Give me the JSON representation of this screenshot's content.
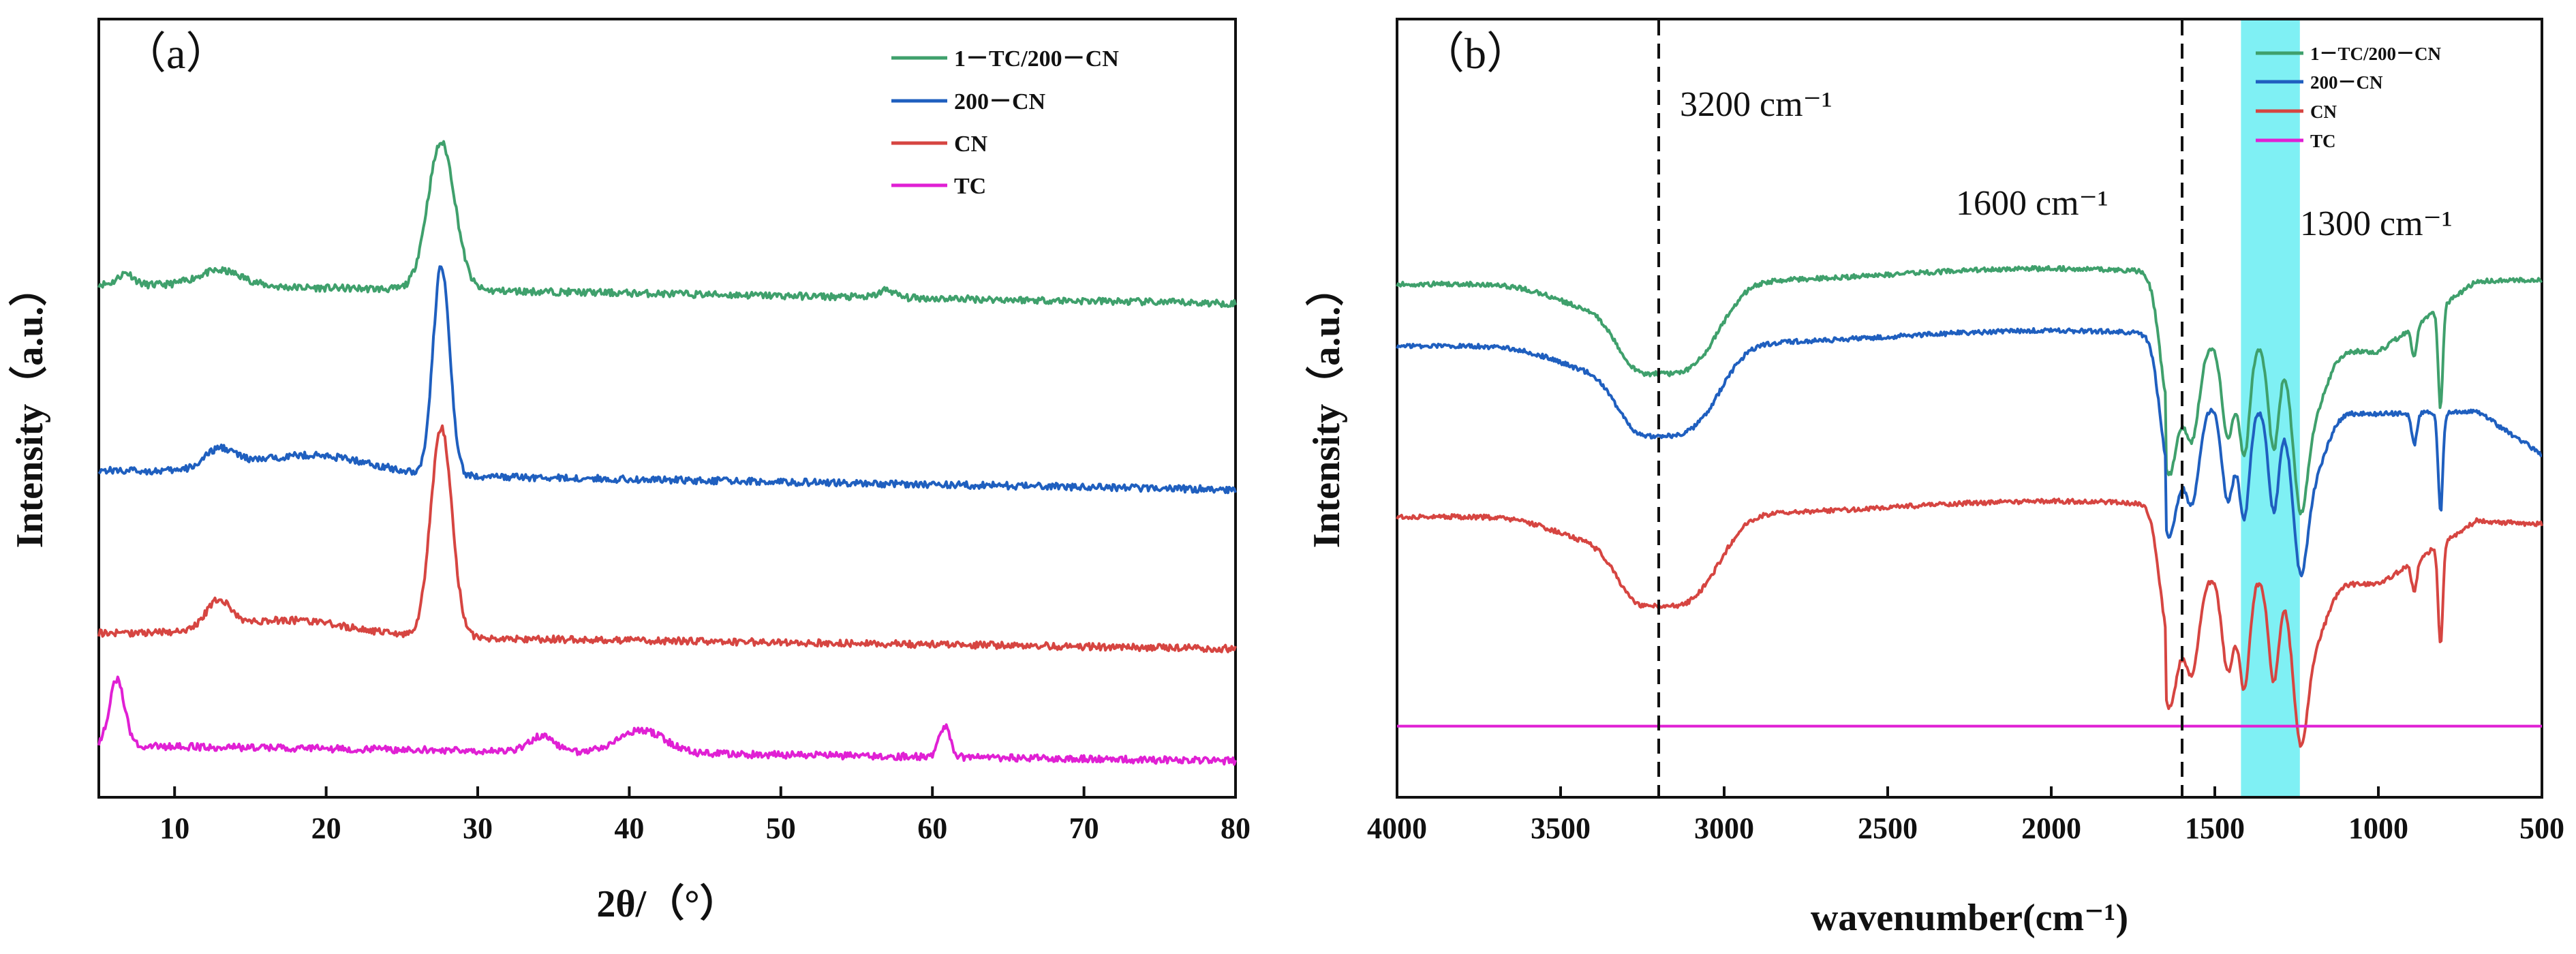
{
  "colors": {
    "green": "#3fa06c",
    "blue": "#1f5fbf",
    "red": "#d64541",
    "magenta": "#e020d4",
    "highlight": "#7ff0f4",
    "axis": "#111111"
  },
  "chart_data": [
    {
      "id": "a",
      "type": "line",
      "panel_label": "（a）",
      "xlabel": "2θ/（°）",
      "ylabel": "Intensity（a.u.）",
      "xlim": [
        5,
        80
      ],
      "xticks": [
        10,
        20,
        30,
        40,
        50,
        60,
        70,
        80
      ],
      "tick_labels": [
        "10",
        "20",
        "30",
        "40",
        "50",
        "60",
        "70",
        "80"
      ],
      "ylim": [
        0,
        100
      ],
      "legend": {
        "position": "top-right",
        "entries": [
          "1－TC/200－CN",
          "200－CN",
          "CN",
          "TC"
        ]
      },
      "series": [
        {
          "name": "1－TC/200－CN",
          "color": "green",
          "baseline": 66,
          "end": 63.5,
          "peaks": [
            [
              6.8,
              1.5,
              0.5
            ],
            [
              13,
              2,
              1.5
            ],
            [
              27.6,
              19,
              0.9
            ],
            [
              57,
              1,
              0.5
            ]
          ]
        },
        {
          "name": "200－CN",
          "color": "blue",
          "baseline": 42,
          "end": 39.5,
          "peaks": [
            [
              13,
              2.5,
              1.0
            ],
            [
              17,
              1.5,
              3.0
            ],
            [
              21,
              1.5,
              3.0
            ],
            [
              27.6,
              27,
              0.55
            ]
          ]
        },
        {
          "name": "CN",
          "color": "red",
          "baseline": 21,
          "end": 19,
          "peaks": [
            [
              12.9,
              3.5,
              0.8
            ],
            [
              17.5,
              2,
              4.0
            ],
            [
              27.6,
              27,
              0.7
            ]
          ]
        },
        {
          "name": "TC",
          "color": "magenta",
          "baseline": 6.5,
          "end": 4.5,
          "peaks": [
            [
              6.2,
              8.5,
              0.5
            ],
            [
              34.2,
              2,
              0.8
            ],
            [
              40.8,
              3,
              1.5
            ],
            [
              60.8,
              4,
              0.35
            ]
          ]
        }
      ]
    },
    {
      "id": "b",
      "type": "line",
      "panel_label": "（b）",
      "xlabel": "wavenumber(cm⁻¹)",
      "ylabel": "Intensity（a.u.）",
      "xlim": [
        4000,
        500
      ],
      "xticks": [
        4000,
        3500,
        3000,
        2500,
        2000,
        1500,
        1000,
        500
      ],
      "tick_labels": [
        "4000",
        "3500",
        "3000",
        "2500",
        "2000",
        "1500",
        "1000",
        "500"
      ],
      "ylim": [
        0,
        100
      ],
      "reference_lines": [
        3200,
        1600
      ],
      "highlight_band": [
        1420,
        1240
      ],
      "annotations": [
        "3200 cm⁻¹",
        "1600 cm⁻¹",
        "1300 cm⁻¹"
      ],
      "legend": {
        "position": "top-right",
        "entries": [
          "1－TC/200－CN",
          "200－CN",
          "CN",
          "TC"
        ]
      },
      "series": [
        {
          "name": "1－TC/200－CN",
          "color": "green",
          "baseline": 66,
          "end": 66.5
        },
        {
          "name": "200－CN",
          "color": "blue",
          "baseline": 58,
          "end": 44
        },
        {
          "name": "CN",
          "color": "red",
          "baseline": 36,
          "end": 35
        },
        {
          "name": "TC",
          "color": "magenta",
          "baseline": 9,
          "end": 9
        }
      ]
    }
  ]
}
